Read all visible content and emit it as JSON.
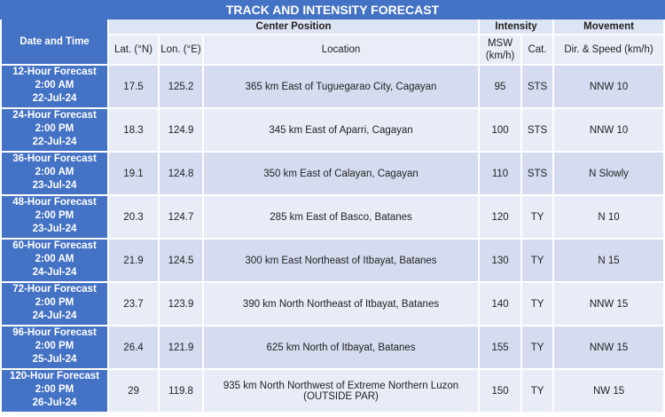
{
  "title": "TRACK AND INTENSITY FORECAST",
  "header": {
    "date_time": "Date and Time",
    "center_position": "Center Position",
    "intensity": "Intensity",
    "movement": "Movement",
    "lat": "Lat. (°N)",
    "lon": "Lon. (°E)",
    "location": "Location",
    "msw": "MSW (km/h)",
    "cat": "Cat.",
    "dir_speed": "Dir. & Speed (km/h)"
  },
  "rows": [
    {
      "period": "12-Hour Forecast",
      "time": "2:00 AM",
      "date": "22-Jul-24",
      "lat": "17.5",
      "lon": "125.2",
      "location": [
        "365 km East of Tuguegarao City, Cagayan"
      ],
      "msw": "95",
      "cat": "STS",
      "movement": "NNW 10"
    },
    {
      "period": "24-Hour Forecast",
      "time": "2:00 PM",
      "date": "22-Jul-24",
      "lat": "18.3",
      "lon": "124.9",
      "location": [
        "345 km East of Aparri, Cagayan"
      ],
      "msw": "100",
      "cat": "STS",
      "movement": "NNW 10"
    },
    {
      "period": "36-Hour Forecast",
      "time": "2:00 AM",
      "date": "23-Jul-24",
      "lat": "19.1",
      "lon": "124.8",
      "location": [
        "350 km East of Calayan, Cagayan"
      ],
      "msw": "110",
      "cat": "STS",
      "movement": "N Slowly"
    },
    {
      "period": "48-Hour Forecast",
      "time": "2:00 PM",
      "date": "23-Jul-24",
      "lat": "20.3",
      "lon": "124.7",
      "location": [
        "285 km East of Basco, Batanes"
      ],
      "msw": "120",
      "cat": "TY",
      "movement": "N 10"
    },
    {
      "period": "60-Hour Forecast",
      "time": "2:00 AM",
      "date": "24-Jul-24",
      "lat": "21.9",
      "lon": "124.5",
      "location": [
        "300 km East Northeast of Itbayat, Batanes"
      ],
      "msw": "130",
      "cat": "TY",
      "movement": "N 15"
    },
    {
      "period": "72-Hour Forecast",
      "time": "2:00 PM",
      "date": "24-Jul-24",
      "lat": "23.7",
      "lon": "123.9",
      "location": [
        "390 km North Northeast of Itbayat, Batanes"
      ],
      "msw": "140",
      "cat": "TY",
      "movement": "NNW 15"
    },
    {
      "period": "96-Hour Forecast",
      "time": "2:00 PM",
      "date": "25-Jul-24",
      "lat": "26.4",
      "lon": "121.9",
      "location": [
        "625 km North of Itbayat, Batanes"
      ],
      "msw": "155",
      "cat": "TY",
      "movement": "NNW 15"
    },
    {
      "period": "120-Hour Forecast",
      "time": "2:00 PM",
      "date": "26-Jul-24",
      "lat": "29",
      "lon": "119.8",
      "location": [
        "935 km North Northwest of Extreme Northern Luzon",
        "(OUTSIDE PAR)"
      ],
      "msw": "150",
      "cat": "TY",
      "movement": "NW 15"
    }
  ]
}
